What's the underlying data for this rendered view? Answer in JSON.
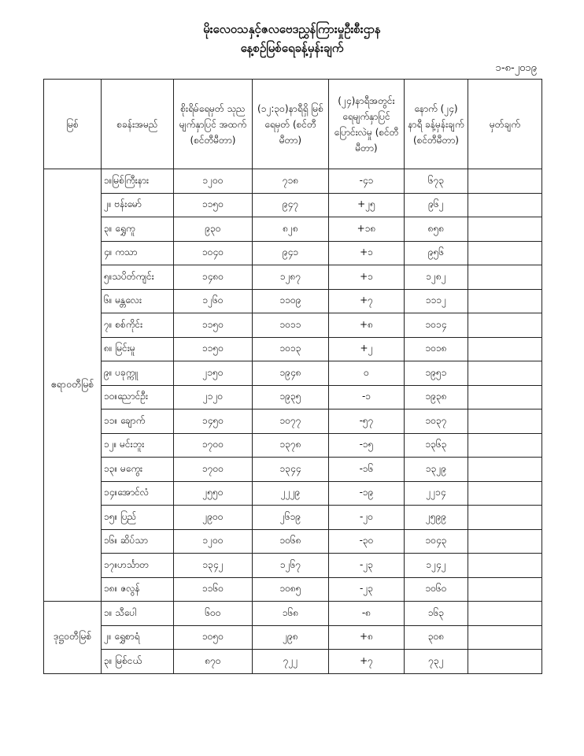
{
  "header": {
    "title": "မိုးလေဝသနှင့်ဇလဗေဒညွှန်ကြားမှုဦးစီးဌာန",
    "subtitle": "နေ့စဉ်မြစ်ရေခန့်မှန်းချက်",
    "date": "၁-၈-၂၀၁၉"
  },
  "columns": [
    "မြစ်",
    "စခန်းအမည်",
    "စိုးရိမ်ရေမှတ် သုညမျက်နှာပြင် အထက် (စင်တီမီတာ)",
    "(၁၂:၃၀)နာရီရှိ မြစ်ရေမှတ် (စင်တီမီတာ)",
    "(၂၄)နာရီအတွင်း ရေမျက်နှာပြင် ပြောင်းလဲမှု (စင်တီမီတာ)",
    "နောက် (၂၄) နာရီ ခန့်မှန်းချက် (စင်တီမီတာ)",
    "မှတ်ချက်"
  ],
  "groups": [
    {
      "river": "ဧရာဝတီမြစ်",
      "rows": [
        [
          "၁။မြစ်ကြီးနား",
          "၁၂၀၀",
          "၇၁၈",
          "-၄၁",
          "၆၇၃",
          ""
        ],
        [
          "၂။ ဗန်းမော်",
          "၁၁၅၀",
          "၉၄၇",
          "+၂၅",
          "၉၆၂",
          ""
        ],
        [
          "၃။ ရွှေကူ",
          "၉၃၀",
          "၈၂၈",
          "+၁၈",
          "၈၅၈",
          ""
        ],
        [
          "၄။ ကသာ",
          "၁၀၄၀",
          "၉၄၁",
          "+၁",
          "၉၅၆",
          ""
        ],
        [
          "၅။သပိတ်ကျင်း",
          "၁၄၈၀",
          "၁၂၈၇",
          "+၁",
          "၁၂၈၂",
          ""
        ],
        [
          "၆။ မန္တလေး",
          "၁၂၆၀",
          "၁၁၀၉",
          "+၇",
          "၁၁၁၂",
          ""
        ],
        [
          "၇။ စစ်ကိုင်း",
          "၁၁၅၀",
          "၁၀၁၁",
          "+၈",
          "၁၀၁၄",
          ""
        ],
        [
          "၈။ မြင်းမူ",
          "၁၁၅၀",
          "၁၀၁၃",
          "+၂",
          "၁၀၁၈",
          ""
        ],
        [
          "၉။ ပခုက္ကူ",
          "၂၁၅၀",
          "၁၉၄၈",
          "၀",
          "၁၉၅၁",
          ""
        ],
        [
          "၁၀။ညောင်ဦး",
          "၂၁၂၀",
          "၁၉၃၅",
          "-၁",
          "၁၉၃၈",
          ""
        ],
        [
          "၁၁။ ချောက်",
          "၁၄၅၀",
          "၁၀၇၇",
          "-၅၇",
          "၁၀၃၇",
          ""
        ],
        [
          "၁၂။ မင်းဘူး",
          "၁၇၀၀",
          "၁၃၇၈",
          "-၁၅",
          "၁၃၆၃",
          ""
        ],
        [
          "၁၃။ မကွေး",
          "၁၇၀၀",
          "၁၃၄၄",
          "-၁၆",
          "၁၃၂၉",
          ""
        ],
        [
          "၁၄။အောင်လံ",
          "၂၅၅၀",
          "၂၂၂၉",
          "-၁၉",
          "၂၂၁၄",
          ""
        ],
        [
          "၁၅။ ပြည်",
          "၂၉၀၀",
          "၂၆၁၉",
          "-၂၀",
          "၂၅၉၉",
          ""
        ],
        [
          "၁၆။ ဆိပ်သာ",
          "၁၂၀၀",
          "၁၀၆၈",
          "-၃၀",
          "၁၀၄၃",
          ""
        ],
        [
          "၁၇။ဟင်္သာတ",
          "၁၃၄၂",
          "၁၂၆၇",
          "-၂၃",
          "၁၂၄၂",
          ""
        ],
        [
          "၁၈။ ဇလွန်",
          "၁၁၆၀",
          "၁၀၈၅",
          "-၂၃",
          "၁၀၆၀",
          ""
        ]
      ]
    },
    {
      "river": "ဒုဋ္ဌဝတီမြစ်",
      "rows": [
        [
          "၁။ သီပေါ",
          "၆၀၀",
          "၁၆၈",
          "-၈",
          "၁၆၃",
          ""
        ],
        [
          "၂။ ရွှေစာရံ",
          "၁၀၅၀",
          "၂၉၈",
          "+၈",
          "၃၀၈",
          ""
        ],
        [
          "၃။ မြစ်ငယ်",
          "၈၇၀",
          "၇၂၂",
          "+၇",
          "၇၃၂",
          ""
        ]
      ]
    }
  ]
}
